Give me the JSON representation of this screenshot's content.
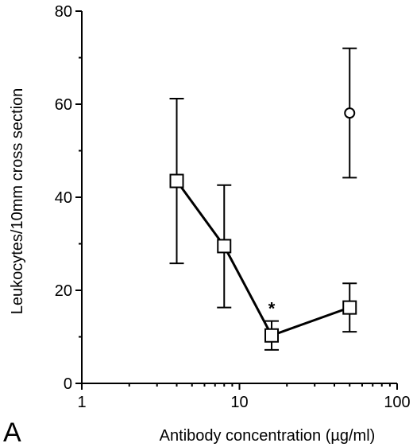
{
  "chart_data": {
    "type": "scatter",
    "panel_label": "A",
    "xlabel": "Antibody concentration (µg/ml)",
    "ylabel": "Leukocytes/10mm cross section",
    "xscale": "log",
    "xlim": [
      1,
      100
    ],
    "ylim": [
      0,
      80
    ],
    "x_ticks": [
      1,
      10,
      100
    ],
    "x_tick_labels": [
      "1",
      "10",
      "100"
    ],
    "y_ticks": [
      0,
      20,
      40,
      60,
      80
    ],
    "y_tick_labels": [
      "0",
      "20",
      "40",
      "60",
      "80"
    ],
    "grid": false,
    "legend": "none",
    "series": [
      {
        "marker": "square",
        "connected": true,
        "points": [
          {
            "x": 4,
            "y": 43.5,
            "err_low": 25.8,
            "err_high": 61.2
          },
          {
            "x": 8,
            "y": 29.5,
            "err_low": 16.3,
            "err_high": 42.6
          },
          {
            "x": 16,
            "y": 10.3,
            "err_low": 7.2,
            "err_high": 13.4,
            "annotation": "*"
          },
          {
            "x": 50,
            "y": 16.3,
            "err_low": 11.1,
            "err_high": 21.5
          }
        ]
      },
      {
        "marker": "circle",
        "connected": false,
        "points": [
          {
            "x": 50,
            "y": 58.1,
            "err_low": 44.2,
            "err_high": 72.0
          }
        ]
      }
    ]
  }
}
